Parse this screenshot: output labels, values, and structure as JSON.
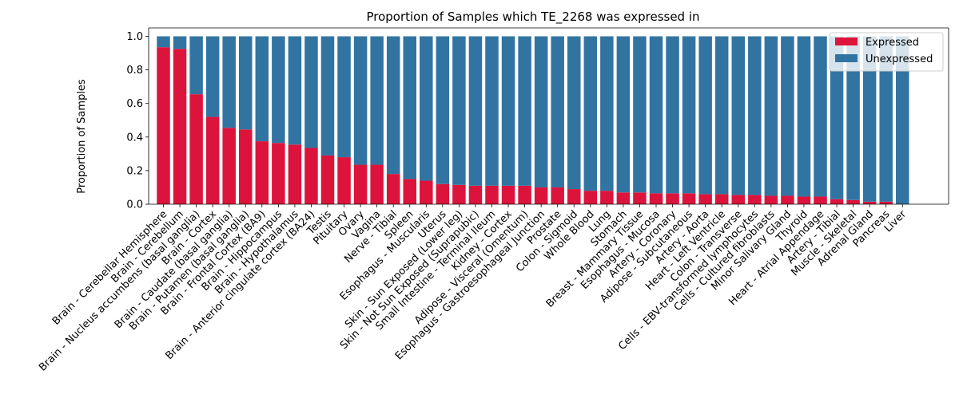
{
  "chart_data": {
    "type": "bar",
    "stacked": true,
    "title": "Proportion of Samples which TE_2268 was expressed in",
    "xlabel": "",
    "ylabel": "Proportion of Samples",
    "ylim": [
      0,
      1.05
    ],
    "yticks": [
      0.0,
      0.2,
      0.4,
      0.6,
      0.8,
      1.0
    ],
    "ytick_labels": [
      "0.0",
      "0.2",
      "0.4",
      "0.6",
      "0.8",
      "1.0"
    ],
    "grid": false,
    "legend_position": "top-right",
    "categories": [
      "Brain - Cerebellar Hemisphere",
      "Brain - Cerebellum",
      "Brain - Nucleus accumbens (basal ganglia)",
      "Brain - Cortex",
      "Brain - Caudate (basal ganglia)",
      "Brain - Putamen (basal ganglia)",
      "Brain - Frontal Cortex (BA9)",
      "Brain - Hippocampus",
      "Brain - Hypothalamus",
      "Brain - Anterior cingulate cortex (BA24)",
      "Testis",
      "Pituitary",
      "Ovary",
      "Vagina",
      "Nerve - Tibial",
      "Spleen",
      "Esophagus - Muscularis",
      "Uterus",
      "Skin - Sun Exposed (Lower leg)",
      "Skin - Not Sun Exposed (Suprapubic)",
      "Small Intestine - Terminal Ileum",
      "Kidney - Cortex",
      "Adipose - Visceral (Omentum)",
      "Esophagus - Gastroesophageal Junction",
      "Prostate",
      "Colon - Sigmoid",
      "Whole Blood",
      "Lung",
      "Stomach",
      "Breast - Mammary Tissue",
      "Esophagus - Mucosa",
      "Artery - Coronary",
      "Adipose - Subcutaneous",
      "Artery - Aorta",
      "Heart - Left Ventricle",
      "Colon - Transverse",
      "Cells - EBV-transformed lymphocytes",
      "Cells - Cultured fibroblasts",
      "Minor Salivary Gland",
      "Thyroid",
      "Heart - Atrial Appendage",
      "Artery - Tibial",
      "Muscle - Skeletal",
      "Adrenal Gland",
      "Pancreas",
      "Liver"
    ],
    "series": [
      {
        "name": "Expressed",
        "color": "#dc143c",
        "values": [
          0.935,
          0.925,
          0.655,
          0.52,
          0.455,
          0.445,
          0.375,
          0.365,
          0.355,
          0.335,
          0.29,
          0.28,
          0.235,
          0.235,
          0.18,
          0.15,
          0.14,
          0.12,
          0.115,
          0.11,
          0.11,
          0.11,
          0.11,
          0.1,
          0.1,
          0.09,
          0.08,
          0.08,
          0.07,
          0.07,
          0.065,
          0.065,
          0.065,
          0.06,
          0.06,
          0.055,
          0.055,
          0.05,
          0.05,
          0.045,
          0.045,
          0.03,
          0.025,
          0.015,
          0.015,
          0.0
        ]
      },
      {
        "name": "Unexpressed",
        "color": "#3274a1",
        "values": [
          0.065,
          0.075,
          0.345,
          0.48,
          0.545,
          0.555,
          0.625,
          0.635,
          0.645,
          0.665,
          0.71,
          0.72,
          0.765,
          0.765,
          0.82,
          0.85,
          0.86,
          0.88,
          0.885,
          0.89,
          0.89,
          0.89,
          0.89,
          0.9,
          0.9,
          0.91,
          0.92,
          0.92,
          0.93,
          0.93,
          0.935,
          0.935,
          0.935,
          0.94,
          0.94,
          0.945,
          0.945,
          0.95,
          0.95,
          0.955,
          0.955,
          0.97,
          0.975,
          0.985,
          0.985,
          1.0
        ]
      }
    ]
  }
}
